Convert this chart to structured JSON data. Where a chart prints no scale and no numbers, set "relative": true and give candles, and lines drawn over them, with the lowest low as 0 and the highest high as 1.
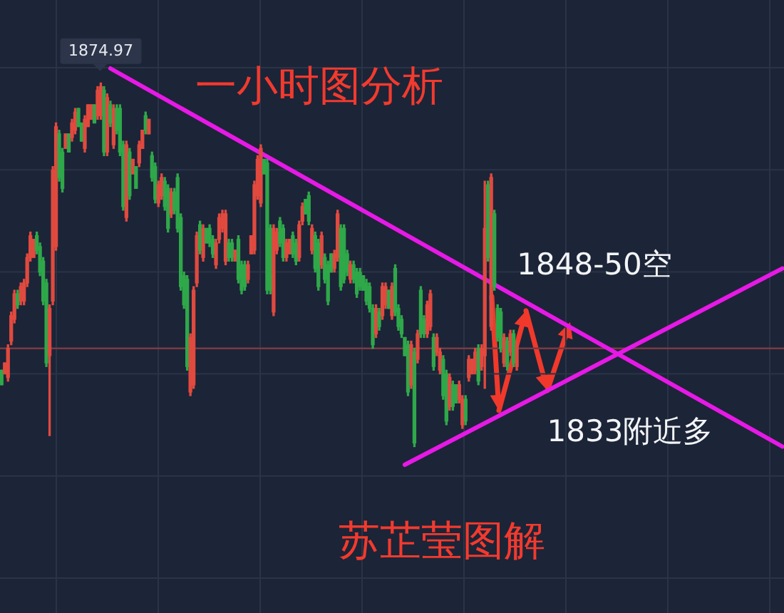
{
  "chart_data": {
    "type": "candlestick",
    "relative": true,
    "title": "一小时图分析",
    "annotations": [
      {
        "text": "1874.97",
        "y": 1
      },
      "1848-50空",
      "1833附近多",
      "苏芷莹图解"
    ],
    "categories": [
      null,
      null,
      null,
      null,
      null,
      null,
      null,
      null,
      null,
      null,
      null,
      null,
      null,
      null,
      null,
      null,
      null,
      null,
      null,
      null,
      null,
      null,
      null,
      null,
      null,
      null,
      null,
      null,
      null,
      null,
      null,
      null,
      null,
      null,
      null,
      null,
      null,
      null,
      null,
      null,
      null,
      null,
      null,
      null,
      null,
      null,
      null,
      null,
      null,
      null,
      null,
      null,
      null,
      null,
      null,
      null,
      null,
      null,
      null,
      null,
      null,
      null,
      null,
      null,
      null,
      null,
      null,
      null,
      null,
      null,
      null,
      null,
      null,
      null,
      null,
      null,
      null,
      null,
      null,
      null,
      null,
      null,
      null,
      null,
      null,
      null,
      null,
      null,
      null,
      null,
      null,
      null,
      null,
      null,
      null,
      null,
      null,
      null,
      null,
      null,
      null,
      null,
      null,
      null,
      null,
      null,
      null,
      null,
      null,
      null,
      null,
      null,
      null,
      null,
      null,
      null,
      null,
      null,
      null,
      null,
      null,
      null,
      null,
      null,
      null,
      null,
      null,
      null,
      null,
      null,
      null,
      null,
      null,
      null,
      null,
      null,
      null,
      null,
      null,
      null,
      null,
      null,
      null,
      null,
      null,
      null,
      null,
      null,
      null,
      null,
      null,
      null,
      null,
      null,
      null,
      null,
      null,
      null,
      null,
      null,
      null,
      null,
      null,
      null,
      null,
      null,
      null,
      null,
      null,
      null,
      null,
      null,
      null,
      null,
      null,
      null,
      null,
      null,
      null,
      null,
      null,
      null,
      null,
      null,
      null,
      null,
      null,
      null,
      null,
      null,
      null,
      null,
      null,
      null,
      null,
      null,
      null,
      null,
      null,
      null,
      null,
      null,
      null,
      null,
      null,
      null,
      null,
      null,
      null,
      null,
      null,
      null,
      null,
      null,
      null,
      null,
      null,
      null,
      null,
      null,
      null,
      null,
      null,
      null,
      null,
      null,
      null,
      null,
      null,
      null,
      null,
      null,
      null,
      null,
      null,
      null,
      null,
      null,
      null,
      null,
      null,
      null,
      null,
      null,
      null
    ],
    "ohlc": [
      [
        0.21,
        0.21,
        0.17,
        0.17
      ],
      [
        0.2,
        0.23,
        0.2,
        0.23
      ],
      [
        0.19,
        0.28,
        0.18,
        0.27
      ],
      [
        0.29,
        0.37,
        0.28,
        0.36
      ],
      [
        0.35,
        0.43,
        0.34,
        0.42
      ],
      [
        0.42,
        0.43,
        0.38,
        0.39
      ],
      [
        0.4,
        0.45,
        0.39,
        0.44
      ],
      [
        0.4,
        0.46,
        0.39,
        0.45
      ],
      [
        0.45,
        0.53,
        0.44,
        0.52
      ],
      [
        0.52,
        0.59,
        0.51,
        0.58
      ],
      [
        0.52,
        0.57,
        0.52,
        0.57
      ],
      [
        0.58,
        0.59,
        0.53,
        0.54
      ],
      [
        0.55,
        0.56,
        0.47,
        0.48
      ],
      [
        0.51,
        0.52,
        0.39,
        0.4
      ],
      [
        0.45,
        0.46,
        0.22,
        0.23
      ],
      [
        0.25,
        0.39,
        0.03,
        0.38
      ],
      [
        0.4,
        0.77,
        0.39,
        0.76
      ],
      [
        0.55,
        0.89,
        0.54,
        0.88
      ],
      [
        0.86,
        0.87,
        0.73,
        0.74
      ],
      [
        0.81,
        0.82,
        0.7,
        0.71
      ],
      [
        0.82,
        0.86,
        0.82,
        0.86
      ],
      [
        0.86,
        0.86,
        0.81,
        0.81
      ],
      [
        0.85,
        0.9,
        0.84,
        0.89
      ],
      [
        0.87,
        0.93,
        0.86,
        0.92
      ],
      [
        0.93,
        0.93,
        0.88,
        0.88
      ],
      [
        0.89,
        0.89,
        0.84,
        0.84
      ],
      [
        0.82,
        0.91,
        0.81,
        0.9
      ],
      [
        0.88,
        0.94,
        0.88,
        0.94
      ],
      [
        0.9,
        0.94,
        0.9,
        0.94
      ],
      [
        0.94,
        0.94,
        0.89,
        0.89
      ],
      [
        0.91,
        0.99,
        0.9,
        0.98
      ],
      [
        0.91,
        1.0,
        0.9,
        0.99
      ],
      [
        0.98,
        0.99,
        0.8,
        0.81
      ],
      [
        0.81,
        0.97,
        0.8,
        0.96
      ],
      [
        0.94,
        0.95,
        0.88,
        0.89
      ],
      [
        0.83,
        0.94,
        0.82,
        0.93
      ],
      [
        0.93,
        0.94,
        0.86,
        0.87
      ],
      [
        0.93,
        0.94,
        0.8,
        0.81
      ],
      [
        0.83,
        0.84,
        0.65,
        0.66
      ],
      [
        0.63,
        0.84,
        0.62,
        0.83
      ],
      [
        0.81,
        0.82,
        0.68,
        0.69
      ],
      [
        0.75,
        0.79,
        0.75,
        0.79
      ],
      [
        0.77,
        0.77,
        0.71,
        0.71
      ],
      [
        0.78,
        0.84,
        0.77,
        0.83
      ],
      [
        0.82,
        0.87,
        0.82,
        0.87
      ],
      [
        0.91,
        0.92,
        0.86,
        0.87
      ],
      [
        0.86,
        0.9,
        0.86,
        0.9
      ],
      [
        0.8,
        0.81,
        0.73,
        0.74
      ],
      [
        0.77,
        0.78,
        0.67,
        0.68
      ],
      [
        0.67,
        0.73,
        0.66,
        0.72
      ],
      [
        0.69,
        0.75,
        0.68,
        0.74
      ],
      [
        0.73,
        0.74,
        0.65,
        0.66
      ],
      [
        0.71,
        0.72,
        0.59,
        0.6
      ],
      [
        0.64,
        0.71,
        0.63,
        0.7
      ],
      [
        0.7,
        0.71,
        0.64,
        0.65
      ],
      [
        0.74,
        0.75,
        0.59,
        0.6
      ],
      [
        0.63,
        0.64,
        0.43,
        0.44
      ],
      [
        0.47,
        0.48,
        0.38,
        0.39
      ],
      [
        0.46,
        0.47,
        0.21,
        0.22
      ],
      [
        0.15,
        0.31,
        0.14,
        0.3
      ],
      [
        0.17,
        0.44,
        0.16,
        0.43
      ],
      [
        0.45,
        0.59,
        0.44,
        0.58
      ],
      [
        0.61,
        0.62,
        0.53,
        0.54
      ],
      [
        0.52,
        0.61,
        0.51,
        0.6
      ],
      [
        0.6,
        0.6,
        0.56,
        0.56
      ],
      [
        0.6,
        0.61,
        0.55,
        0.56
      ],
      [
        0.57,
        0.58,
        0.52,
        0.53
      ],
      [
        0.5,
        0.57,
        0.49,
        0.56
      ],
      [
        0.57,
        0.64,
        0.56,
        0.63
      ],
      [
        0.6,
        0.65,
        0.59,
        0.64
      ],
      [
        0.51,
        0.65,
        0.5,
        0.64
      ],
      [
        0.56,
        0.57,
        0.51,
        0.52
      ],
      [
        0.56,
        0.57,
        0.51,
        0.52
      ],
      [
        0.51,
        0.54,
        0.51,
        0.54
      ],
      [
        0.57,
        0.58,
        0.45,
        0.46
      ],
      [
        0.5,
        0.51,
        0.42,
        0.43
      ],
      [
        0.5,
        0.51,
        0.43,
        0.44
      ],
      [
        0.46,
        0.51,
        0.45,
        0.5
      ],
      [
        0.53,
        0.58,
        0.53,
        0.58
      ],
      [
        0.54,
        0.73,
        0.53,
        0.72
      ],
      [
        0.69,
        0.8,
        0.68,
        0.79
      ],
      [
        0.67,
        0.83,
        0.66,
        0.82
      ],
      [
        0.79,
        0.79,
        0.75,
        0.75
      ],
      [
        0.78,
        0.79,
        0.42,
        0.43
      ],
      [
        0.6,
        0.61,
        0.42,
        0.43
      ],
      [
        0.37,
        0.61,
        0.36,
        0.6
      ],
      [
        0.54,
        0.6,
        0.53,
        0.59
      ],
      [
        0.62,
        0.63,
        0.55,
        0.56
      ],
      [
        0.6,
        0.61,
        0.51,
        0.52
      ],
      [
        0.52,
        0.57,
        0.51,
        0.56
      ],
      [
        0.53,
        0.57,
        0.53,
        0.57
      ],
      [
        0.58,
        0.59,
        0.52,
        0.53
      ],
      [
        0.56,
        0.57,
        0.5,
        0.51
      ],
      [
        0.52,
        0.62,
        0.51,
        0.61
      ],
      [
        0.62,
        0.67,
        0.61,
        0.66
      ],
      [
        0.68,
        0.68,
        0.64,
        0.64
      ],
      [
        0.69,
        0.7,
        0.61,
        0.62
      ],
      [
        0.54,
        0.61,
        0.53,
        0.6
      ],
      [
        0.58,
        0.59,
        0.48,
        0.49
      ],
      [
        0.56,
        0.57,
        0.43,
        0.44
      ],
      [
        0.5,
        0.59,
        0.49,
        0.58
      ],
      [
        0.52,
        0.53,
        0.45,
        0.46
      ],
      [
        0.5,
        0.51,
        0.39,
        0.4
      ],
      [
        0.53,
        0.53,
        0.48,
        0.48
      ],
      [
        0.49,
        0.54,
        0.48,
        0.53
      ],
      [
        0.52,
        0.65,
        0.51,
        0.64
      ],
      [
        0.6,
        0.61,
        0.43,
        0.44
      ],
      [
        0.6,
        0.61,
        0.45,
        0.46
      ],
      [
        0.53,
        0.54,
        0.47,
        0.48
      ],
      [
        0.46,
        0.51,
        0.45,
        0.5
      ],
      [
        0.5,
        0.51,
        0.45,
        0.46
      ],
      [
        0.48,
        0.49,
        0.41,
        0.42
      ],
      [
        0.48,
        0.49,
        0.43,
        0.44
      ],
      [
        0.47,
        0.47,
        0.43,
        0.43
      ],
      [
        0.45,
        0.46,
        0.39,
        0.4
      ],
      [
        0.44,
        0.45,
        0.37,
        0.38
      ],
      [
        0.38,
        0.39,
        0.27,
        0.28
      ],
      [
        0.31,
        0.39,
        0.3,
        0.38
      ],
      [
        0.37,
        0.38,
        0.32,
        0.33
      ],
      [
        0.36,
        0.45,
        0.35,
        0.44
      ],
      [
        0.39,
        0.45,
        0.38,
        0.44
      ],
      [
        0.43,
        0.43,
        0.38,
        0.38
      ],
      [
        0.36,
        0.45,
        0.35,
        0.44
      ],
      [
        0.49,
        0.5,
        0.36,
        0.37
      ],
      [
        0.38,
        0.39,
        0.32,
        0.33
      ],
      [
        0.35,
        0.36,
        0.3,
        0.31
      ],
      [
        0.3,
        0.3,
        0.25,
        0.25
      ],
      [
        0.28,
        0.29,
        0.14,
        0.15
      ],
      [
        0.17,
        0.29,
        0.16,
        0.28
      ],
      [
        0.26,
        0.27,
        0.0,
        0.01
      ],
      [
        0.24,
        0.32,
        0.23,
        0.31
      ],
      [
        0.43,
        0.44,
        0.3,
        0.31
      ],
      [
        0.35,
        0.36,
        0.3,
        0.31
      ],
      [
        0.31,
        0.4,
        0.3,
        0.39
      ],
      [
        0.33,
        0.43,
        0.32,
        0.42
      ],
      [
        0.3,
        0.31,
        0.21,
        0.22
      ],
      [
        0.26,
        0.31,
        0.25,
        0.3
      ],
      [
        0.21,
        0.27,
        0.2,
        0.26
      ],
      [
        0.24,
        0.25,
        0.13,
        0.14
      ],
      [
        0.2,
        0.21,
        0.06,
        0.07
      ],
      [
        0.11,
        0.2,
        0.1,
        0.19
      ],
      [
        0.17,
        0.18,
        0.1,
        0.11
      ],
      [
        0.17,
        0.17,
        0.12,
        0.12
      ],
      [
        0.13,
        0.18,
        0.12,
        0.17
      ],
      [
        0.06,
        0.14,
        0.05,
        0.13
      ],
      [
        0.13,
        0.14,
        0.06,
        0.07
      ],
      [
        0.19,
        0.25,
        0.18,
        0.24
      ],
      [
        0.2,
        0.24,
        0.2,
        0.24
      ],
      [
        0.21,
        0.27,
        0.2,
        0.26
      ],
      [
        0.27,
        0.28,
        0.17,
        0.18
      ],
      [
        0.22,
        0.28,
        0.21,
        0.27
      ],
      [
        0.25,
        0.73,
        0.16,
        0.6
      ],
      [
        0.72,
        0.73,
        0.51,
        0.52
      ],
      [
        0.33,
        0.75,
        0.32,
        0.74
      ],
      [
        0.64,
        0.65,
        0.43,
        0.44
      ],
      [
        0.38,
        0.39,
        0.29,
        0.3
      ],
      [
        0.37,
        0.38,
        0.26,
        0.27
      ],
      [
        0.23,
        0.31,
        0.22,
        0.3
      ],
      [
        0.29,
        0.3,
        0.21,
        0.22
      ],
      [
        0.26,
        0.32,
        0.25,
        0.31
      ],
      [
        0.31,
        0.32,
        0.22,
        0.23
      ],
      [
        0.22,
        0.29,
        0.21,
        0.28
      ],
      null,
      null,
      null,
      null,
      null,
      null,
      null,
      null,
      null,
      null,
      null,
      null,
      null,
      null,
      null,
      null,
      null,
      null,
      null,
      null,
      null,
      null,
      null,
      null,
      null,
      null,
      null,
      null,
      null,
      null,
      null,
      null,
      null,
      null,
      null,
      null,
      null,
      null,
      null,
      null,
      null,
      null,
      null,
      null,
      null,
      null,
      null,
      null,
      null,
      null,
      null,
      null,
      null,
      null,
      null,
      null,
      null,
      null,
      null,
      null,
      null,
      null,
      null,
      null,
      null,
      null,
      null,
      null,
      null,
      null,
      null,
      null,
      null,
      null,
      null,
      null,
      null,
      null,
      null,
      null,
      null,
      null,
      null
    ],
    "colors": [
      "#2fa84a",
      "#e04a3f",
      "#e04a3f",
      "#e04a3f",
      "#e04a3f",
      "#2fa84a",
      "#e04a3f",
      "#e04a3f",
      "#e04a3f",
      "#e04a3f",
      "#e04a3f",
      "#2fa84a",
      "#2fa84a",
      "#2fa84a",
      "#2fa84a",
      "#e04a3f",
      "#e04a3f",
      "#e04a3f",
      "#2fa84a",
      "#2fa84a",
      "#e04a3f",
      "#2fa84a",
      "#e04a3f",
      "#e04a3f",
      "#2fa84a",
      "#2fa84a",
      "#e04a3f",
      "#e04a3f",
      "#e04a3f",
      "#2fa84a",
      "#e04a3f",
      "#e04a3f",
      "#2fa84a",
      "#e04a3f",
      "#2fa84a",
      "#e04a3f",
      "#2fa84a",
      "#2fa84a",
      "#2fa84a",
      "#e04a3f",
      "#2fa84a",
      "#e04a3f",
      "#2fa84a",
      "#e04a3f",
      "#e04a3f",
      "#2fa84a",
      "#e04a3f",
      "#2fa84a",
      "#2fa84a",
      "#e04a3f",
      "#e04a3f",
      "#2fa84a",
      "#2fa84a",
      "#e04a3f",
      "#2fa84a",
      "#2fa84a",
      "#2fa84a",
      "#2fa84a",
      "#2fa84a",
      "#e04a3f",
      "#e04a3f",
      "#e04a3f",
      "#2fa84a",
      "#e04a3f",
      "#2fa84a",
      "#2fa84a",
      "#2fa84a",
      "#e04a3f",
      "#e04a3f",
      "#e04a3f",
      "#e04a3f",
      "#2fa84a",
      "#2fa84a",
      "#e04a3f",
      "#2fa84a",
      "#2fa84a",
      "#2fa84a",
      "#e04a3f",
      "#e04a3f",
      "#e04a3f",
      "#e04a3f",
      "#e04a3f",
      "#2fa84a",
      "#2fa84a",
      "#2fa84a",
      "#e04a3f",
      "#e04a3f",
      "#2fa84a",
      "#2fa84a",
      "#e04a3f",
      "#e04a3f",
      "#2fa84a",
      "#2fa84a",
      "#e04a3f",
      "#e04a3f",
      "#2fa84a",
      "#2fa84a",
      "#e04a3f",
      "#2fa84a",
      "#2fa84a",
      "#e04a3f",
      "#2fa84a",
      "#2fa84a",
      "#2fa84a",
      "#e04a3f",
      "#e04a3f",
      "#2fa84a",
      "#2fa84a",
      "#2fa84a",
      "#e04a3f",
      "#2fa84a",
      "#2fa84a",
      "#2fa84a",
      "#2fa84a",
      "#2fa84a",
      "#2fa84a",
      "#2fa84a",
      "#e04a3f",
      "#2fa84a",
      "#e04a3f",
      "#e04a3f",
      "#2fa84a",
      "#e04a3f",
      "#2fa84a",
      "#2fa84a",
      "#2fa84a",
      "#2fa84a",
      "#2fa84a",
      "#e04a3f",
      "#2fa84a",
      "#e04a3f",
      "#2fa84a",
      "#2fa84a",
      "#e04a3f",
      "#e04a3f",
      "#2fa84a",
      "#e04a3f",
      "#e04a3f",
      "#2fa84a",
      "#2fa84a",
      "#e04a3f",
      "#2fa84a",
      "#2fa84a",
      "#e04a3f",
      "#e04a3f",
      "#2fa84a",
      "#e04a3f",
      "#e04a3f",
      "#e04a3f",
      "#2fa84a",
      "#e04a3f",
      "#e04a3f",
      "#2fa84a",
      "#e04a3f",
      "#2fa84a",
      "#2fa84a",
      "#2fa84a",
      "#e04a3f",
      "#2fa84a",
      "#e04a3f",
      "#2fa84a",
      "#e04a3f",
      null,
      null,
      null,
      null,
      null,
      null,
      null,
      null,
      null,
      null,
      null,
      null,
      null,
      null,
      null,
      null,
      null,
      null,
      null,
      null,
      null,
      null,
      null,
      null,
      null,
      null,
      null,
      null,
      null,
      null,
      null,
      null,
      null,
      null,
      null,
      null,
      null,
      null,
      null,
      null,
      null,
      null,
      null,
      null,
      null,
      null,
      null,
      null,
      null,
      null,
      null,
      null,
      null,
      null,
      null,
      null,
      null,
      null,
      null,
      null,
      null,
      null,
      null,
      null,
      null,
      null,
      null,
      null,
      null,
      null,
      null,
      null,
      null,
      null,
      null,
      null,
      null,
      null,
      null,
      null,
      null,
      null,
      null
    ],
    "series": [
      {
        "type": "line",
        "color": "#e619e6",
        "values": [
          null,
          null,
          null,
          null,
          null,
          null,
          null,
          null,
          null,
          null,
          null,
          null,
          null,
          null,
          null,
          null,
          null,
          null,
          null,
          null,
          null,
          null,
          null,
          null,
          null,
          null,
          null,
          null,
          null,
          null,
          null,
          null,
          null,
          null,
          1.04,
          null,
          null,
          null,
          null,
          null,
          null,
          null,
          null,
          null,
          null,
          null,
          null,
          null,
          null,
          null,
          null,
          null,
          null,
          null,
          null,
          null,
          null,
          null,
          null,
          null,
          null,
          null,
          null,
          null,
          null,
          null,
          null,
          null,
          null,
          null,
          null,
          null,
          null,
          null,
          null,
          null,
          null,
          null,
          null,
          null,
          null,
          null,
          null,
          null,
          null,
          null,
          null,
          null,
          null,
          null,
          null,
          null,
          null,
          null,
          null,
          null,
          null,
          null,
          null,
          null,
          null,
          null,
          null,
          null,
          null,
          null,
          null,
          null,
          null,
          null,
          null,
          null,
          null,
          null,
          null,
          null,
          null,
          null,
          null,
          null,
          null,
          null,
          null,
          null,
          null,
          null,
          null,
          null,
          null,
          null,
          null,
          null,
          null,
          null,
          null,
          null,
          null,
          null,
          null,
          null,
          null,
          null,
          null,
          null,
          null,
          null,
          null,
          null,
          null,
          null,
          null,
          null,
          null,
          null,
          null,
          null,
          null,
          null,
          null,
          null,
          null,
          null,
          null,
          null,
          null,
          null,
          null,
          null,
          null,
          null,
          null,
          null,
          null,
          null,
          null,
          null,
          null,
          null,
          null,
          null,
          null,
          null,
          null,
          null,
          null,
          null,
          null,
          null,
          null,
          null,
          null,
          null,
          null,
          null,
          null,
          null,
          null,
          null,
          null,
          null,
          null,
          null,
          null,
          null,
          null,
          null,
          null,
          null,
          null,
          null,
          null,
          null,
          null,
          null,
          null,
          null,
          null,
          null,
          null,
          null,
          null,
          null,
          null,
          null,
          null,
          null,
          null,
          null,
          null,
          null,
          null,
          null,
          null,
          null,
          null,
          null,
          null,
          null,
          null,
          null,
          null,
          null,
          null,
          null,
          0
        ]
      },
      {
        "type": "line",
        "color": "#e619e6",
        "values": [
          null,
          null,
          null,
          null,
          null,
          null,
          null,
          null,
          null,
          null,
          null,
          null,
          null,
          null,
          null,
          null,
          null,
          null,
          null,
          null,
          null,
          null,
          null,
          null,
          null,
          null,
          null,
          null,
          null,
          null,
          null,
          null,
          null,
          null,
          null,
          null,
          null,
          null,
          null,
          null,
          null,
          null,
          null,
          null,
          null,
          null,
          null,
          null,
          null,
          null,
          null,
          null,
          null,
          null,
          null,
          null,
          null,
          null,
          null,
          null,
          null,
          null,
          null,
          null,
          null,
          null,
          null,
          null,
          null,
          null,
          null,
          null,
          null,
          null,
          null,
          null,
          null,
          null,
          null,
          null,
          null,
          null,
          null,
          null,
          null,
          null,
          null,
          null,
          null,
          null,
          null,
          null,
          null,
          null,
          null,
          null,
          null,
          null,
          null,
          null,
          null,
          null,
          null,
          null,
          null,
          null,
          null,
          null,
          null,
          null,
          null,
          null,
          null,
          null,
          null,
          null,
          null,
          null,
          null,
          null,
          null,
          null,
          null,
          null,
          null,
          null,
          -0.05,
          null,
          null,
          null,
          null,
          null,
          null,
          null,
          null,
          null,
          null,
          null,
          null,
          null,
          null,
          null,
          null,
          null,
          null,
          null,
          null,
          null,
          null,
          null,
          null,
          null,
          null,
          null,
          null,
          null,
          null,
          null,
          null,
          null,
          null,
          null,
          null,
          null,
          null,
          null,
          null,
          null,
          null,
          null,
          null,
          null,
          null,
          null,
          null,
          null,
          null,
          null,
          null,
          null,
          null,
          null,
          null,
          null,
          null,
          null,
          null,
          null,
          null,
          null,
          null,
          null,
          null,
          null,
          null,
          null,
          null,
          null,
          null,
          null,
          null,
          null,
          null,
          null,
          null,
          null,
          null,
          null,
          null,
          null,
          null,
          null,
          null,
          null,
          null,
          null,
          null,
          null,
          null,
          null,
          null,
          null,
          null,
          null,
          null,
          null,
          null,
          null,
          null,
          null,
          null,
          null,
          null,
          null,
          null,
          null,
          null,
          null,
          null,
          null,
          null,
          null,
          null,
          null,
          0.49
        ]
      }
    ],
    "ref_lines": [
      {
        "axis": "y",
        "value": 0.27,
        "color": "#7a3a44"
      }
    ],
    "grid": true,
    "tick_labels": false
  }
}
